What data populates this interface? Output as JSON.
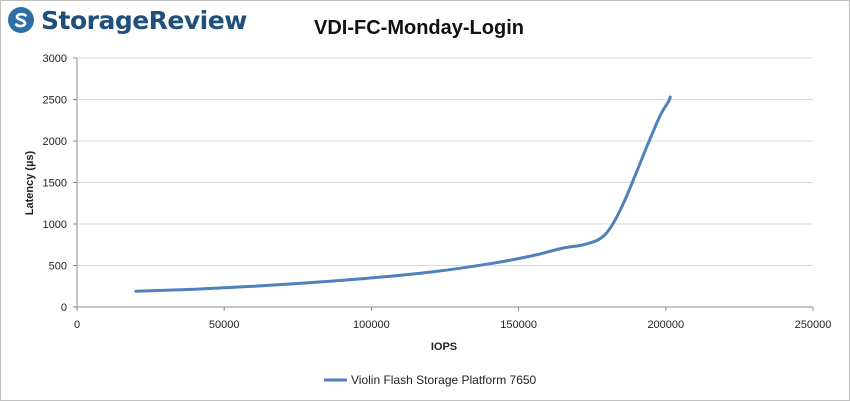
{
  "brand": {
    "logo_text": "StorageReview",
    "logo_icon": "storagereview-s-logo-icon",
    "color": "#2f6fa7"
  },
  "chart_data": {
    "type": "line",
    "title": "VDI-FC-Monday-Login",
    "xlabel": "IOPS",
    "ylabel": "Latency (µs)",
    "xlim": [
      0,
      250000
    ],
    "ylim": [
      0,
      3000
    ],
    "xticks": [
      0,
      50000,
      100000,
      150000,
      200000,
      250000
    ],
    "yticks": [
      0,
      500,
      1000,
      1500,
      2000,
      2500,
      3000
    ],
    "grid": "horizontal",
    "legend_position": "bottom",
    "series": [
      {
        "name": "Violin Flash Storage Platform 7650",
        "color": "#4f81bd",
        "x": [
          20000,
          40000,
          60000,
          80000,
          100000,
          120000,
          140000,
          155000,
          165000,
          172000,
          178000,
          182000,
          186000,
          190000,
          194000,
          198000,
          201000,
          201500
        ],
        "y": [
          190,
          215,
          250,
          295,
          350,
          420,
          520,
          620,
          710,
          750,
          830,
          1000,
          1280,
          1620,
          1970,
          2300,
          2480,
          2530
        ]
      }
    ]
  }
}
